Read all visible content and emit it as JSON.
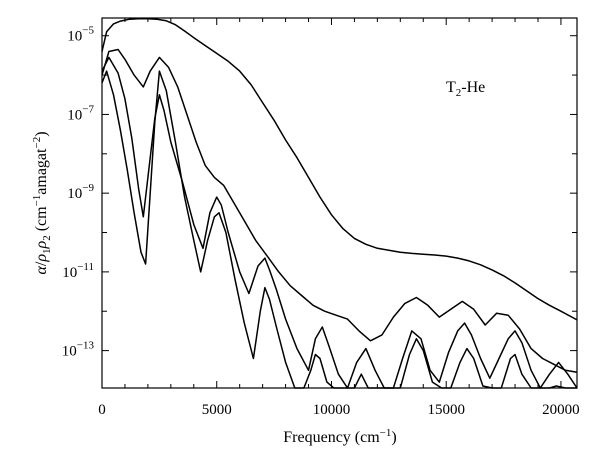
{
  "chart_data": {
    "type": "line",
    "title": "",
    "xlabel": "Frequency (cm",
    "xlabel_sup": "−1",
    "xlabel_close": ")",
    "ylabel_parts": {
      "alpha": "α",
      "slash": "/",
      "rho": "ρ",
      "sub1": "1",
      "rho2": "ρ",
      "sub2": "2",
      "open": " (cm",
      "sup1": "−1",
      "mid": "amagat",
      "sup2": "−2",
      "close": ")"
    },
    "xlim": [
      0,
      20700
    ],
    "ylim_log10": [
      -13.95,
      -4.55
    ],
    "yscale": "log",
    "grid": false,
    "xticks": [
      {
        "value": 0,
        "label": "0"
      },
      {
        "value": 5000,
        "label": "5000"
      },
      {
        "value": 10000,
        "label": "10000"
      },
      {
        "value": 15000,
        "label": "15000"
      },
      {
        "value": 20000,
        "label": "20000"
      }
    ],
    "yticks_major": [
      {
        "exp": -5,
        "base": "10",
        "sup": "−5"
      },
      {
        "exp": -7,
        "base": "10",
        "sup": "−7"
      },
      {
        "exp": -9,
        "base": "10",
        "sup": "−9"
      },
      {
        "exp": -11,
        "base": "10",
        "sup": "−11"
      },
      {
        "exp": -13,
        "base": "10",
        "sup": "−13"
      }
    ],
    "yticks_minor": [
      -6,
      -8,
      -10,
      -12
    ],
    "annotation": {
      "text": "T",
      "sub": "2",
      "rest": "-He"
    },
    "series": [
      {
        "x": [
          0,
          200,
          500,
          800,
          1200,
          1600,
          2000,
          2400,
          2800,
          3200,
          3600,
          4000,
          4500,
          5000,
          5500,
          6000,
          6500,
          7000,
          7500,
          8000,
          8500,
          9000,
          9500,
          10000,
          10500,
          11000,
          11500,
          12000,
          12500,
          13000,
          13500,
          14000,
          14500,
          15000,
          15500,
          16000,
          16500,
          17000,
          17500,
          18000,
          18500,
          19000,
          19500,
          20000,
          20700
        ],
        "y_log10": [
          -5.4,
          -4.9,
          -4.7,
          -4.63,
          -4.58,
          -4.57,
          -4.57,
          -4.58,
          -4.62,
          -4.72,
          -4.88,
          -5.05,
          -5.25,
          -5.45,
          -5.65,
          -5.9,
          -6.25,
          -6.7,
          -7.15,
          -7.65,
          -8.1,
          -8.6,
          -9.1,
          -9.55,
          -9.9,
          -10.15,
          -10.3,
          -10.4,
          -10.45,
          -10.5,
          -10.53,
          -10.55,
          -10.57,
          -10.6,
          -10.65,
          -10.72,
          -10.82,
          -10.95,
          -11.1,
          -11.28,
          -11.48,
          -11.68,
          -11.85,
          -12.0,
          -12.22
        ]
      },
      {
        "x": [
          0,
          300,
          700,
          1000,
          1400,
          1800,
          2100,
          2500,
          2900,
          3300,
          3700,
          4100,
          4500,
          4900,
          5300,
          5700,
          6200,
          6700,
          7200,
          7700,
          8200,
          8700,
          9200,
          9700,
          10200,
          10700,
          11200,
          11700,
          12200,
          12700,
          13200,
          13700,
          14200,
          14700,
          15200,
          15700,
          16200,
          16700,
          17200,
          17700,
          18200,
          18700,
          19200,
          19700,
          20200,
          20700
        ],
        "y_log10": [
          -6.0,
          -5.4,
          -5.35,
          -5.6,
          -6.0,
          -6.3,
          -5.9,
          -5.55,
          -5.8,
          -6.3,
          -7.0,
          -7.7,
          -8.3,
          -8.6,
          -8.8,
          -9.2,
          -9.7,
          -10.2,
          -10.6,
          -11.0,
          -11.35,
          -11.6,
          -11.85,
          -12.0,
          -12.1,
          -12.2,
          -12.5,
          -12.75,
          -12.6,
          -12.15,
          -11.8,
          -11.65,
          -11.85,
          -12.15,
          -11.95,
          -11.75,
          -11.95,
          -12.35,
          -12.05,
          -12.1,
          -12.45,
          -12.95,
          -13.2,
          -13.35,
          -13.5,
          -13.55
        ]
      },
      {
        "x": [
          0,
          300,
          700,
          1000,
          1300,
          1600,
          1800,
          2000,
          2300,
          2500,
          2700,
          3000,
          3500,
          4000,
          4400,
          4700,
          5000,
          5200,
          5500,
          6000,
          6400,
          6800,
          7100,
          7300,
          7600,
          8000,
          8500,
          9000,
          9300,
          9600,
          9900,
          10300,
          10700,
          11100,
          11500,
          11900,
          12300,
          12700,
          13100,
          13500,
          13900,
          14300,
          14700,
          15100,
          15500,
          15800,
          16100,
          16500,
          16900,
          17300,
          17700,
          18000,
          18300,
          18700,
          19100,
          19500,
          19900,
          20300,
          20700
        ],
        "y_log10": [
          -5.9,
          -5.55,
          -5.95,
          -6.6,
          -7.6,
          -8.9,
          -9.6,
          -8.6,
          -7.1,
          -6.5,
          -6.9,
          -7.7,
          -8.7,
          -9.8,
          -10.4,
          -9.5,
          -9.1,
          -9.3,
          -10.0,
          -11.0,
          -11.55,
          -10.85,
          -10.65,
          -10.95,
          -11.45,
          -12.2,
          -12.95,
          -13.5,
          -12.7,
          -12.4,
          -12.9,
          -13.6,
          -13.95,
          -13.3,
          -12.95,
          -13.5,
          -13.95,
          -13.95,
          -13.2,
          -12.5,
          -12.7,
          -13.5,
          -13.8,
          -13.05,
          -12.5,
          -12.3,
          -12.6,
          -13.2,
          -13.7,
          -13.2,
          -12.7,
          -12.5,
          -12.8,
          -13.5,
          -13.95,
          -13.6,
          -13.3,
          -13.6,
          -13.95
        ]
      },
      {
        "x": [
          0,
          200,
          500,
          800,
          1100,
          1400,
          1700,
          1900,
          2100,
          2300,
          2500,
          2800,
          3200,
          3600,
          4000,
          4300,
          4600,
          4900,
          5100,
          5400,
          5800,
          6200,
          6600,
          6900,
          7100,
          7300,
          7600,
          8000,
          8400,
          8800,
          9100,
          9300,
          9500,
          9800,
          10100,
          10400,
          10700,
          11000,
          11300,
          11600,
          11900,
          12200,
          12600,
          13000,
          13400,
          13700,
          14000,
          14400,
          14800,
          15200,
          15600,
          15900,
          16200,
          16600,
          17000,
          17400,
          17800,
          18000,
          18300,
          18700,
          19100,
          19500,
          19800,
          20200,
          20700
        ],
        "y_log10": [
          -6.2,
          -5.9,
          -6.5,
          -7.4,
          -8.4,
          -9.5,
          -10.5,
          -10.8,
          -9.0,
          -7.2,
          -5.9,
          -6.4,
          -7.7,
          -9.1,
          -10.2,
          -11.0,
          -10.2,
          -9.6,
          -9.5,
          -10.0,
          -11.2,
          -12.3,
          -13.2,
          -12.0,
          -11.4,
          -11.7,
          -12.4,
          -13.3,
          -13.95,
          -13.95,
          -13.5,
          -13.1,
          -13.2,
          -13.8,
          -13.95,
          -13.95,
          -13.95,
          -13.95,
          -13.6,
          -13.95,
          -13.95,
          -13.95,
          -13.95,
          -13.95,
          -13.1,
          -12.7,
          -13.0,
          -13.8,
          -13.95,
          -13.95,
          -13.3,
          -12.95,
          -13.2,
          -13.9,
          -13.95,
          -13.95,
          -13.2,
          -13.1,
          -13.6,
          -13.95,
          -13.95,
          -13.95,
          -13.9,
          -13.95,
          -13.95
        ]
      }
    ]
  }
}
